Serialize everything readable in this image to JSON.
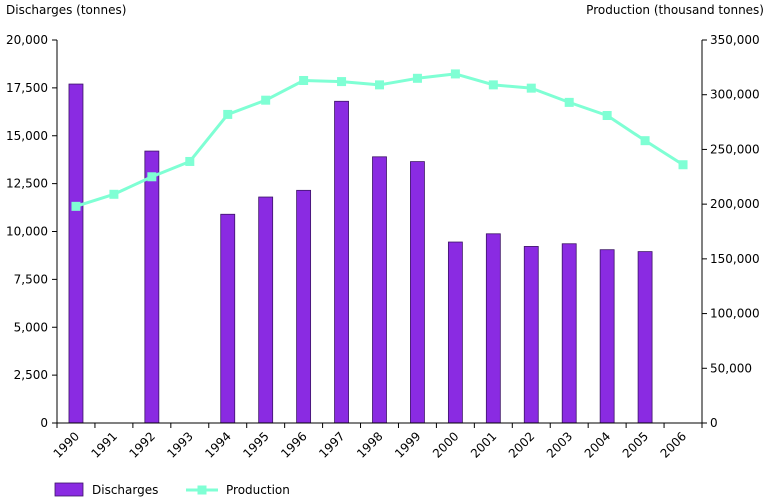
{
  "chart_data": {
    "type": "bar+line",
    "left_axis_title": "Discharges (tonnes)",
    "right_axis_title": "Production (thousand tonnes)",
    "categories": [
      "1990",
      "1991",
      "1992",
      "1993",
      "1994",
      "1995",
      "1996",
      "1997",
      "1998",
      "1999",
      "2000",
      "2001",
      "2002",
      "2003",
      "2004",
      "2005",
      "2006"
    ],
    "left_ylim": [
      0,
      20000
    ],
    "left_ticks": [
      0,
      2500,
      5000,
      7500,
      10000,
      12500,
      15000,
      17500,
      20000
    ],
    "left_tick_labels": [
      "0",
      "2,500",
      "5,000",
      "7,500",
      "10,000",
      "12,500",
      "15,000",
      "17,500",
      "20,000"
    ],
    "right_ylim": [
      0,
      350000
    ],
    "right_ticks": [
      0,
      50000,
      100000,
      150000,
      200000,
      250000,
      300000,
      350000
    ],
    "right_tick_labels": [
      "0",
      "50,000",
      "100,000",
      "150,000",
      "200,000",
      "250,000",
      "300,000",
      "350,000"
    ],
    "grid": false,
    "legend_position": "bottom-left",
    "series": [
      {
        "name": "Discharges",
        "type": "bar",
        "axis": "left",
        "color": "#8a2be2",
        "values": [
          17700,
          null,
          14200,
          null,
          10900,
          11800,
          12150,
          16800,
          13900,
          13650,
          9450,
          9880,
          9220,
          9360,
          9050,
          8950,
          null
        ]
      },
      {
        "name": "Production",
        "type": "line",
        "axis": "right",
        "color": "#7fffd4",
        "values": [
          198000,
          209000,
          225000,
          239000,
          282000,
          295000,
          313000,
          312000,
          309000,
          315000,
          319000,
          309000,
          306000,
          293000,
          281000,
          258000,
          236000
        ]
      }
    ]
  }
}
